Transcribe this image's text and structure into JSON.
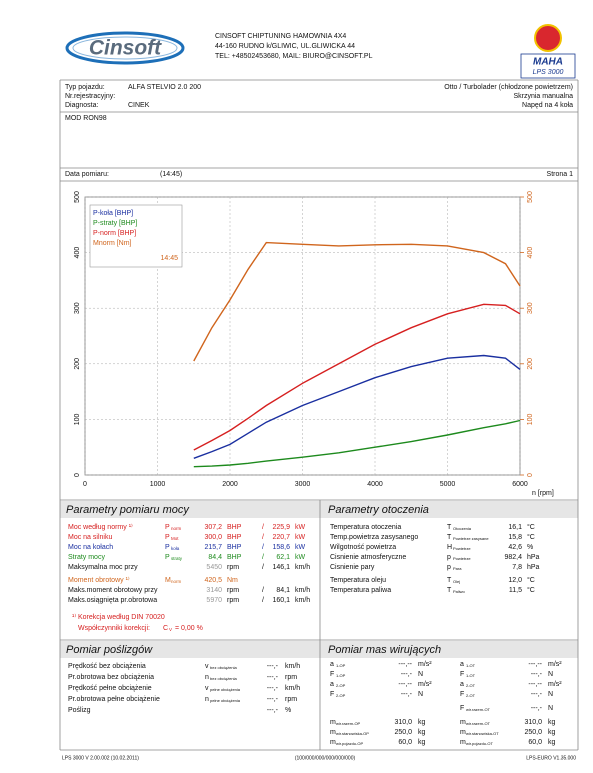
{
  "header": {
    "logo": "Cinsoft",
    "company": [
      "CINSOFT CHIPTUNING HAMOWNIA 4X4",
      "44-160 RUDNO k/GLIWIC, UL.GLIWICKA 44",
      "TEL: +48502453680, MAIL: BIURO@CINSOFT.PL"
    ],
    "badge": "MAHA",
    "model": "LPS 3000"
  },
  "vehicle": {
    "left": [
      {
        "label": "Typ pojazdu:",
        "value": "ALFA STELVIO 2.0 200"
      },
      {
        "label": "Nr.rejestracyjny:"
      },
      {
        "label": "Diagnosta:",
        "value": "CINEK"
      }
    ],
    "right": [
      "Otto / Turbolader (chłodzone powietrzem)",
      "Skrzynia manualna",
      "Napęd na 4 koła"
    ]
  },
  "mode": "MOD RON98",
  "date_row": {
    "label": "Data pomiaru:",
    "time": "(14:45)",
    "page": "Strona 1"
  },
  "chart_data": {
    "type": "line",
    "x": [
      1500,
      1750,
      2000,
      2250,
      2500,
      3000,
      3500,
      4000,
      4500,
      5000,
      5500,
      5800,
      6000
    ],
    "xlim": [
      0,
      6000
    ],
    "xticks": [
      0,
      1000,
      2000,
      3000,
      4000,
      5000,
      6000
    ],
    "x_label": "n [rpm]",
    "ylim": [
      0,
      500
    ],
    "yticks": [
      0,
      100,
      200,
      300,
      400,
      500
    ],
    "y2lim": [
      0,
      500
    ],
    "y2ticks": [
      0,
      100,
      200,
      300,
      400,
      500
    ],
    "y2_color": "#d0651d",
    "grid": true,
    "legend_time": "14:45",
    "series": [
      {
        "name": "P-koła [BHP]",
        "color": "#1a2fa0",
        "values": [
          30,
          42,
          55,
          75,
          95,
          125,
          150,
          175,
          195,
          210,
          215,
          210,
          190
        ]
      },
      {
        "name": "P-straty [BHP]",
        "color": "#1d8a1d",
        "values": [
          15,
          16,
          18,
          21,
          25,
          32,
          40,
          50,
          60,
          72,
          85,
          92,
          98
        ]
      },
      {
        "name": "P-norm [BHP]",
        "color": "#d62020",
        "values": [
          45,
          62,
          80,
          102,
          125,
          165,
          200,
          235,
          265,
          290,
          307,
          305,
          290
        ]
      },
      {
        "name": "Mnorm [Nm]",
        "color": "#d0651d",
        "axis": "y2",
        "values": [
          205,
          265,
          315,
          370,
          418,
          415,
          412,
          414,
          415,
          412,
          400,
          380,
          340
        ]
      }
    ]
  },
  "power": {
    "title": "Parametry pomiaru mocy",
    "rows": [
      {
        "label": "Moc według normy ¹⁾",
        "sym": "P",
        "sub": "norm",
        "v1": "307,2",
        "u1": "BHP",
        "sep": "/",
        "v2": "225,9",
        "u2": "kW",
        "color": "#d62020"
      },
      {
        "label": "Moc na silniku",
        "sym": "P",
        "sub": "Mot",
        "v1": "300,0",
        "u1": "BHP",
        "sep": "/",
        "v2": "220,7",
        "u2": "kW",
        "color": "#d62020"
      },
      {
        "label": "Moc na kołach",
        "sym": "P",
        "sub": "koła",
        "v1": "215,7",
        "u1": "BHP",
        "sep": "/",
        "v2": "158,6",
        "u2": "kW",
        "color": "#1a2fa0"
      },
      {
        "label": "Straty mocy",
        "sym": "P",
        "sub": "straty",
        "v1": "84,4",
        "u1": "BHP",
        "sep": "/",
        "v2": "62,1",
        "u2": "kW",
        "color": "#1d8a1d"
      },
      {
        "label": "Maksymalna moc przy",
        "v1": "5450",
        "u1": "rpm",
        "sep": "/",
        "v2": "146,1",
        "u2": "km/h",
        "color": "#111",
        "value_color": "#999"
      },
      {
        "label": "Moment obrotowy ¹⁾",
        "sym": "M",
        "sub": "norm",
        "v1": "420,5",
        "u1": "Nm",
        "color": "#d0651d"
      },
      {
        "label": "Maks.moment obrotowy przy",
        "v1": "3140",
        "u1": "rpm",
        "sep": "/",
        "v2": "84,1",
        "u2": "km/h",
        "color": "#111",
        "value_color": "#999"
      },
      {
        "label": "Maks.osiągnięta pr.obrotowa",
        "v1": "5970",
        "u1": "rpm",
        "sep": "/",
        "v2": "160,1",
        "u2": "km/h",
        "color": "#111",
        "value_color": "#999"
      }
    ],
    "note": "¹⁾ Korekcja według DIN 70020",
    "factor": {
      "text": "Współczynniki korekcji:",
      "sym": "C",
      "sub": "V",
      "value": "= 0,00 %"
    }
  },
  "ambient": {
    "title": "Parametry otoczenia",
    "rows": [
      {
        "label": "Temperatura otoczenia",
        "sym": "T",
        "sub": "Otoczenia",
        "value": "16,1",
        "unit": "°C"
      },
      {
        "label": "Temp.powietrza zasysanego",
        "sym": "T",
        "sub": "Powietrze zasysane",
        "value": "15,8",
        "unit": "°C"
      },
      {
        "label": "Wilgotność powietrza",
        "sym": "H",
        "sub": "Powietrze",
        "value": "42,6",
        "unit": "%"
      },
      {
        "label": "Cisnienie atmosferyczne",
        "sym": "p",
        "sub": "Powietrze",
        "value": "982,4",
        "unit": "hPa"
      },
      {
        "label": "Cisnienie pary",
        "sym": "p",
        "sub": "Para",
        "value": "7,8",
        "unit": "hPa"
      },
      {
        "label": "Temperatura oleju",
        "sym": "T",
        "sub": "Olej",
        "value": "12,0",
        "unit": "°C"
      },
      {
        "label": "Temperatura paliwa",
        "sym": "T",
        "sub": "Paliwo",
        "value": "11,5",
        "unit": "°C"
      }
    ]
  },
  "slip": {
    "title": "Pomiar poślizgów",
    "rows": [
      {
        "label": "Prędkość bez obciążenia",
        "sym": "v",
        "sub": "bez obciążenia",
        "value": "---,-",
        "unit": "km/h"
      },
      {
        "label": "Pr.obrotowa bez obciążenia",
        "sym": "n",
        "sub": "bez obciążenia",
        "value": "---,-",
        "unit": "rpm"
      },
      {
        "label": "Prędkość pełne obciążenie",
        "sym": "v",
        "sub": "pełne obciążenia",
        "value": "---,-",
        "unit": "km/h"
      },
      {
        "label": "Pr.obrotowa pełne obciążenie",
        "sym": "n",
        "sub": "pełne obciążenia",
        "value": "---,-",
        "unit": "rpm"
      },
      {
        "label": "Poślizg",
        "value": "---,-",
        "unit": "%"
      }
    ]
  },
  "mass": {
    "title": "Pomiar mas wirujących",
    "left": [
      {
        "sym": "a",
        "sub": "1-OP",
        "value": "---,--",
        "unit": "m/s²"
      },
      {
        "sym": "F",
        "sub": "1-OP",
        "value": "---,-",
        "unit": "N"
      },
      {
        "sym": "a",
        "sub": "2-OP",
        "value": "---,--",
        "unit": "m/s²"
      },
      {
        "sym": "F",
        "sub": "2-OP",
        "value": "---,-",
        "unit": "N"
      },
      {
        "sym": "m",
        "sub": "wir.razem-OP",
        "value": "310,0",
        "unit": "kg"
      },
      {
        "sym": "m",
        "sub": "wir.stanowiska-OP",
        "value": "250,0",
        "unit": "kg"
      },
      {
        "sym": "m",
        "sub": "wir.pojazdu-OP",
        "value": "60,0",
        "unit": "kg"
      }
    ],
    "right": [
      {
        "sym": "a",
        "sub": "1-OT",
        "value": "---,--",
        "unit": "m/s²"
      },
      {
        "sym": "F",
        "sub": "1-OT",
        "value": "---,-",
        "unit": "N"
      },
      {
        "sym": "a",
        "sub": "2-OT",
        "value": "---,--",
        "unit": "m/s²"
      },
      {
        "sym": "F",
        "sub": "2-OT",
        "value": "---,-",
        "unit": "N"
      },
      {
        "sym": "F",
        "sub": "wir.razem-OT",
        "value": "---,-",
        "unit": "N"
      },
      {
        "sym": "m",
        "sub": "wir.razem-OT",
        "value": "310,0",
        "unit": "kg"
      },
      {
        "sym": "m",
        "sub": "wir.stanowiska-OT",
        "value": "250,0",
        "unit": "kg"
      },
      {
        "sym": "m",
        "sub": "wir.pojazdu-OT",
        "value": "60,0",
        "unit": "kg"
      }
    ]
  },
  "footer": {
    "left": "LPS 3000 V 2.00.002 (10.02.2011)",
    "center": "(100/000/000/000/000/000)",
    "right": "LPS-EURO V1.35.000"
  }
}
